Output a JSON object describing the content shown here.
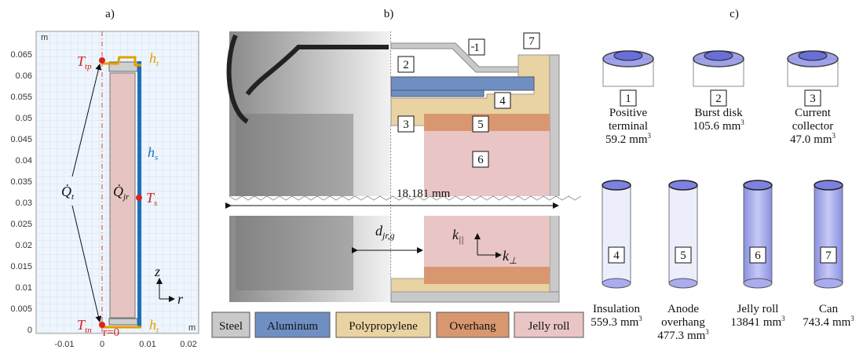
{
  "panel_labels": [
    "a)",
    "b)",
    "c)"
  ],
  "panel_a": {
    "y_unit": "m",
    "x_unit": "m",
    "yticks": [
      "0.065",
      "0.06",
      "0.055",
      "0.05",
      "0.045",
      "0.04",
      "0.035",
      "0.03",
      "0.025",
      "0.02",
      "0.015",
      "0.01",
      "0.005",
      "0"
    ],
    "xticks": [
      "-0.01",
      "0",
      "0.01",
      "0.02"
    ],
    "T_tp": {
      "symbol": "T",
      "sub": "tp"
    },
    "T_tn": {
      "symbol": "T",
      "sub": "tn"
    },
    "T_s": {
      "symbol": "T",
      "sub": "s"
    },
    "h_t": {
      "symbol": "h",
      "sub": "t"
    },
    "h_s": {
      "symbol": "h",
      "sub": "s"
    },
    "Q_t": {
      "symbol": "Q̇",
      "sub": "t"
    },
    "Q_jr": {
      "symbol": "Q̇",
      "sub": "jr"
    },
    "axis_z": "z",
    "axis_r": "r",
    "r_zero": "r=0"
  },
  "panel_b": {
    "parts": [
      "1",
      "2",
      "3",
      "4",
      "5",
      "6",
      "7"
    ],
    "diameter": "18.181 mm",
    "gap": {
      "symbol": "d",
      "sub": "jr,g"
    },
    "k_par": {
      "symbol": "k",
      "sub": "||"
    },
    "k_perp": {
      "symbol": "k",
      "sub": "⊥"
    },
    "legend": [
      {
        "name": "Steel",
        "color": "#c9c9c9"
      },
      {
        "name": "Aluminum",
        "color": "#6f8fc2"
      },
      {
        "name": "Polypropylene",
        "color": "#e9d3a2"
      },
      {
        "name": "Overhang",
        "color": "#d9976f"
      },
      {
        "name": "Jelly roll",
        "color": "#e9c5c5"
      }
    ]
  },
  "panel_c": {
    "volume_unit": "mm",
    "volume_exponent": "3",
    "components": [
      {
        "number": "1",
        "name": [
          "Positive",
          "terminal"
        ],
        "volume": "59.2"
      },
      {
        "number": "2",
        "name": [
          "Burst disk"
        ],
        "volume": "105.6"
      },
      {
        "number": "3",
        "name": [
          "Current",
          "collector"
        ],
        "volume": "47.0"
      },
      {
        "number": "4",
        "name": [
          "Insulation"
        ],
        "volume": "559.3"
      },
      {
        "number": "5",
        "name": [
          "Anode",
          "overhang"
        ],
        "volume": "477.3"
      },
      {
        "number": "6",
        "name": [
          "Jelly roll"
        ],
        "volume": "13841"
      },
      {
        "number": "7",
        "name": [
          "Can"
        ],
        "volume": "743.4"
      }
    ]
  }
}
